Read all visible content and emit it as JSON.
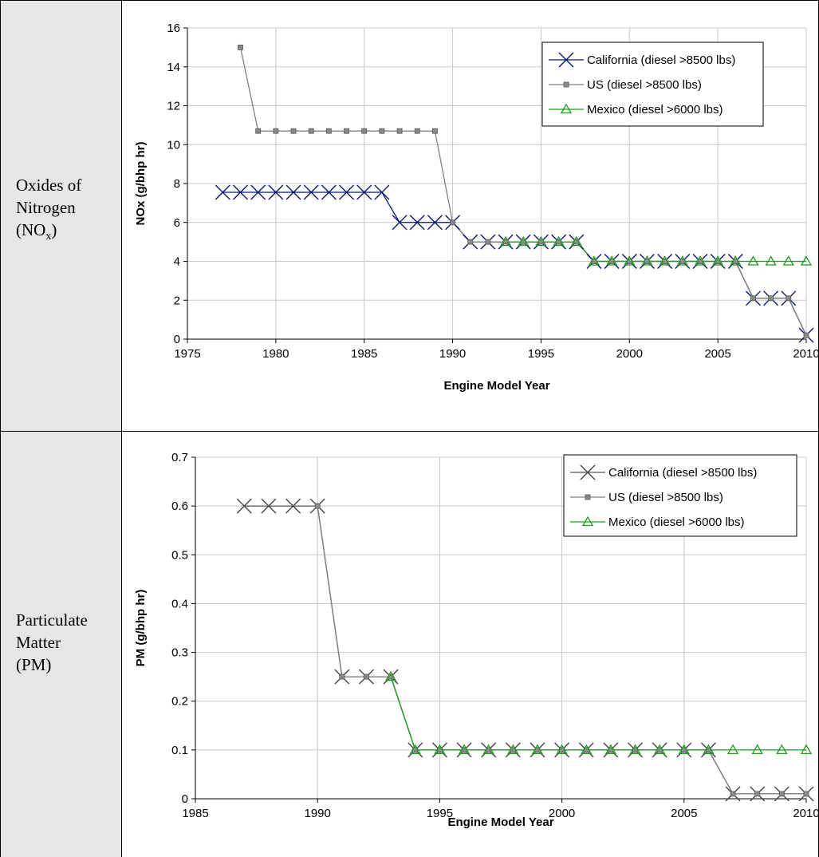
{
  "rows": [
    {
      "label_main": "Oxides of\nNitrogen\n(NO",
      "label_sub": "x",
      "label_tail": ")"
    },
    {
      "label_main": "Particulate\nMatter\n(PM)"
    }
  ],
  "chart_data": [
    {
      "type": "line",
      "xlabel": "Engine Model Year",
      "ylabel": "NOx (g/bhp hr)",
      "xlim": [
        1975,
        2010
      ],
      "ylim": [
        0,
        16
      ],
      "xticks": [
        1975,
        1980,
        1985,
        1990,
        1995,
        2000,
        2005,
        2010
      ],
      "yticks": [
        0,
        2,
        4,
        6,
        8,
        10,
        12,
        14,
        16
      ],
      "grid": true,
      "legend_position": "top-right",
      "series": [
        {
          "name": "California (diesel >8500 lbs)",
          "color": "#0a1a6e",
          "marker": "x",
          "x": [
            1977,
            1978,
            1979,
            1980,
            1981,
            1982,
            1983,
            1984,
            1985,
            1986,
            1987,
            1988,
            1989,
            1990,
            1991,
            1992,
            1993,
            1994,
            1995,
            1996,
            1997,
            1998,
            1999,
            2000,
            2001,
            2002,
            2003,
            2004,
            2005,
            2006,
            2007,
            2008,
            2009,
            2010
          ],
          "y": [
            7.55,
            7.55,
            7.55,
            7.55,
            7.55,
            7.55,
            7.55,
            7.55,
            7.55,
            7.55,
            6,
            6,
            6,
            6,
            5,
            5,
            5,
            5,
            5,
            5,
            5,
            4,
            4,
            4,
            4,
            4,
            4,
            4,
            4,
            4,
            2.1,
            2.1,
            2.1,
            0.2
          ]
        },
        {
          "name": "US (diesel >8500 lbs)",
          "color": "#808080",
          "marker": "square",
          "x": [
            1978,
            1979,
            1980,
            1981,
            1982,
            1983,
            1984,
            1985,
            1986,
            1987,
            1988,
            1989,
            1990,
            1991,
            1992,
            1993,
            1994,
            1995,
            1996,
            1997,
            1998,
            1999,
            2000,
            2001,
            2002,
            2003,
            2004,
            2005,
            2006,
            2007,
            2008,
            2009,
            2010
          ],
          "y": [
            15,
            10.7,
            10.7,
            10.7,
            10.7,
            10.7,
            10.7,
            10.7,
            10.7,
            10.7,
            10.7,
            10.7,
            6,
            5,
            5,
            5,
            5,
            5,
            5,
            5,
            4,
            4,
            4,
            4,
            4,
            4,
            4,
            4,
            4,
            2.1,
            2.1,
            2.1,
            0.2
          ]
        },
        {
          "name": "Mexico (diesel >6000 lbs)",
          "color": "#1f9a1f",
          "marker": "triangle",
          "x": [
            1993,
            1994,
            1995,
            1996,
            1997,
            1998,
            1999,
            2000,
            2001,
            2002,
            2003,
            2004,
            2005,
            2006,
            2007,
            2008,
            2009,
            2010
          ],
          "y": [
            5,
            5,
            5,
            5,
            5,
            4,
            4,
            4,
            4,
            4,
            4,
            4,
            4,
            4,
            4,
            4,
            4,
            4
          ]
        }
      ]
    },
    {
      "type": "line",
      "xlabel": "Engine Model Year",
      "ylabel": "PM (g/bhp hr)",
      "xlim": [
        1985,
        2010
      ],
      "ylim": [
        0,
        0.7
      ],
      "xticks": [
        1985,
        1990,
        1995,
        2000,
        2005,
        2010
      ],
      "yticks": [
        0,
        0.1,
        0.2,
        0.3,
        0.4,
        0.5,
        0.6,
        0.7
      ],
      "grid": true,
      "legend_position": "top-right",
      "series": [
        {
          "name": "California (diesel >8500 lbs)",
          "color": "#555555",
          "marker": "x",
          "x": [
            1987,
            1988,
            1989,
            1990,
            1991,
            1992,
            1993,
            1994,
            1995,
            1996,
            1997,
            1998,
            1999,
            2000,
            2001,
            2002,
            2003,
            2004,
            2005,
            2006,
            2007,
            2008,
            2009,
            2010
          ],
          "y": [
            0.6,
            0.6,
            0.6,
            0.6,
            0.25,
            0.25,
            0.25,
            0.1,
            0.1,
            0.1,
            0.1,
            0.1,
            0.1,
            0.1,
            0.1,
            0.1,
            0.1,
            0.1,
            0.1,
            0.1,
            0.01,
            0.01,
            0.01,
            0.01
          ]
        },
        {
          "name": "US (diesel >8500 lbs)",
          "color": "#808080",
          "marker": "square",
          "x": [
            1990,
            1991,
            1992,
            1993,
            1994,
            1995,
            1996,
            1997,
            1998,
            1999,
            2000,
            2001,
            2002,
            2003,
            2004,
            2005,
            2006,
            2007,
            2008,
            2009,
            2010
          ],
          "y": [
            0.6,
            0.25,
            0.25,
            0.25,
            0.1,
            0.1,
            0.1,
            0.1,
            0.1,
            0.1,
            0.1,
            0.1,
            0.1,
            0.1,
            0.1,
            0.1,
            0.1,
            0.01,
            0.01,
            0.01,
            0.01
          ]
        },
        {
          "name": "Mexico (diesel >6000 lbs)",
          "color": "#1f9a1f",
          "marker": "triangle",
          "x": [
            1993,
            1994,
            1995,
            1996,
            1997,
            1998,
            1999,
            2000,
            2001,
            2002,
            2003,
            2004,
            2005,
            2006,
            2007,
            2008,
            2009,
            2010
          ],
          "y": [
            0.25,
            0.1,
            0.1,
            0.1,
            0.1,
            0.1,
            0.1,
            0.1,
            0.1,
            0.1,
            0.1,
            0.1,
            0.1,
            0.1,
            0.1,
            0.1,
            0.1,
            0.1
          ]
        }
      ]
    }
  ]
}
